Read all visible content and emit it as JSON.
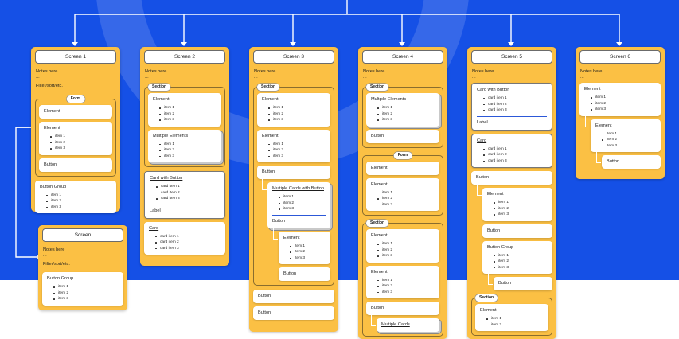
{
  "screens": [
    {
      "title": "Screen 1",
      "notes": "Notes here",
      "dash": "...",
      "filter": "Filter/sort/etc.",
      "form": {
        "label": "Form",
        "element1": "Element",
        "element2": "Element",
        "items": [
          "item 1",
          "item 2",
          "item 3"
        ],
        "button": "Button"
      },
      "button_group": {
        "title": "Button Group",
        "items": [
          "item 1",
          "item 2",
          "item 3"
        ]
      }
    },
    {
      "title": "Screen 2",
      "notes": "Notes here",
      "dash": "...",
      "section": {
        "label": "Section",
        "element": "Element",
        "element_items": [
          "item 1",
          "item 2",
          "item 3"
        ],
        "multiple": "Multiple Elements",
        "multiple_items": [
          "item 1",
          "item 2",
          "item 3"
        ]
      },
      "card_with_button": {
        "title": "Card with Button",
        "items": [
          "card item 1",
          "card item 2",
          "card item 3"
        ],
        "label": "Label"
      },
      "card": {
        "title": "Card",
        "items": [
          "card item 1",
          "card item 2",
          "card item 3"
        ]
      }
    },
    {
      "title": "Screen 3",
      "notes": "Notes here",
      "dash": "...",
      "section": {
        "label": "Section",
        "element1": "Element",
        "element1_items": [
          "item 1",
          "item 2",
          "item 3"
        ],
        "element2": "Element",
        "element2_items": [
          "item 1",
          "item 2",
          "item 3"
        ],
        "button": "Button",
        "mcwb": {
          "title": "Multiple Cards with Button",
          "items": [
            "item 1",
            "item 2",
            "item 3"
          ],
          "button": "Button"
        },
        "nested_element": "Element",
        "nested_items": [
          "item 1",
          "item 2",
          "item 3"
        ],
        "nested_button": "Button"
      },
      "button1": "Button",
      "button2": "Button"
    },
    {
      "title": "Screen 4",
      "notes": "Notes here",
      "dash": "...",
      "section1": {
        "label": "Section",
        "multiple": "Multiple Elements",
        "multiple_items": [
          "item 1",
          "item 2",
          "item 3"
        ],
        "button": "Button"
      },
      "form": {
        "label": "Form",
        "element1": "Element",
        "element2": "Element",
        "element2_items": [
          "item 1",
          "item 2",
          "item 3"
        ]
      },
      "section2": {
        "label": "Section",
        "element1": "Element",
        "element1_items": [
          "item 1",
          "item 2",
          "item 3"
        ],
        "element2": "Element",
        "element2_items": [
          "item 1",
          "item 2",
          "item 3"
        ],
        "button": "Button",
        "multiple_cards": "Multiple Cards"
      }
    },
    {
      "title": "Screen 5",
      "notes": "Notes here",
      "dash": "...",
      "card_with_button": {
        "title": "Card with Button",
        "items": [
          "card item 1",
          "card item 2",
          "card item 3"
        ],
        "label": "Label"
      },
      "card": {
        "title": "Card",
        "items": [
          "card item 1",
          "card item 2",
          "card item 3"
        ]
      },
      "button1": "Button",
      "element": "Element",
      "element_items": [
        "item 1",
        "item 2",
        "item 3"
      ],
      "button2": "Button",
      "button_group": {
        "title": "Button Group",
        "items": [
          "item 1",
          "item 2",
          "item 3"
        ]
      },
      "button3": "Button",
      "section": {
        "label": "Section",
        "element": "Element",
        "items": [
          "item 1",
          "item 2"
        ]
      }
    },
    {
      "title": "Screen 6",
      "notes": "Notes here",
      "dash": "...",
      "element1": "Element",
      "element1_items": [
        "item 1",
        "item 2",
        "item 3"
      ],
      "element2": "Element",
      "element2_items": [
        "item 1",
        "item 2",
        "item 3"
      ],
      "button": "Button"
    },
    {
      "title": "Screen",
      "notes": "Notes here",
      "dash": "...",
      "filter": "Filter/sort/etc.",
      "button_group": {
        "title": "Button Group",
        "items": [
          "item 1",
          "item 2",
          "item 3"
        ]
      }
    }
  ],
  "colors": {
    "background": "#1550e6",
    "screen": "#fbc044",
    "card": "#ffffff",
    "connector": "#ffffff"
  }
}
